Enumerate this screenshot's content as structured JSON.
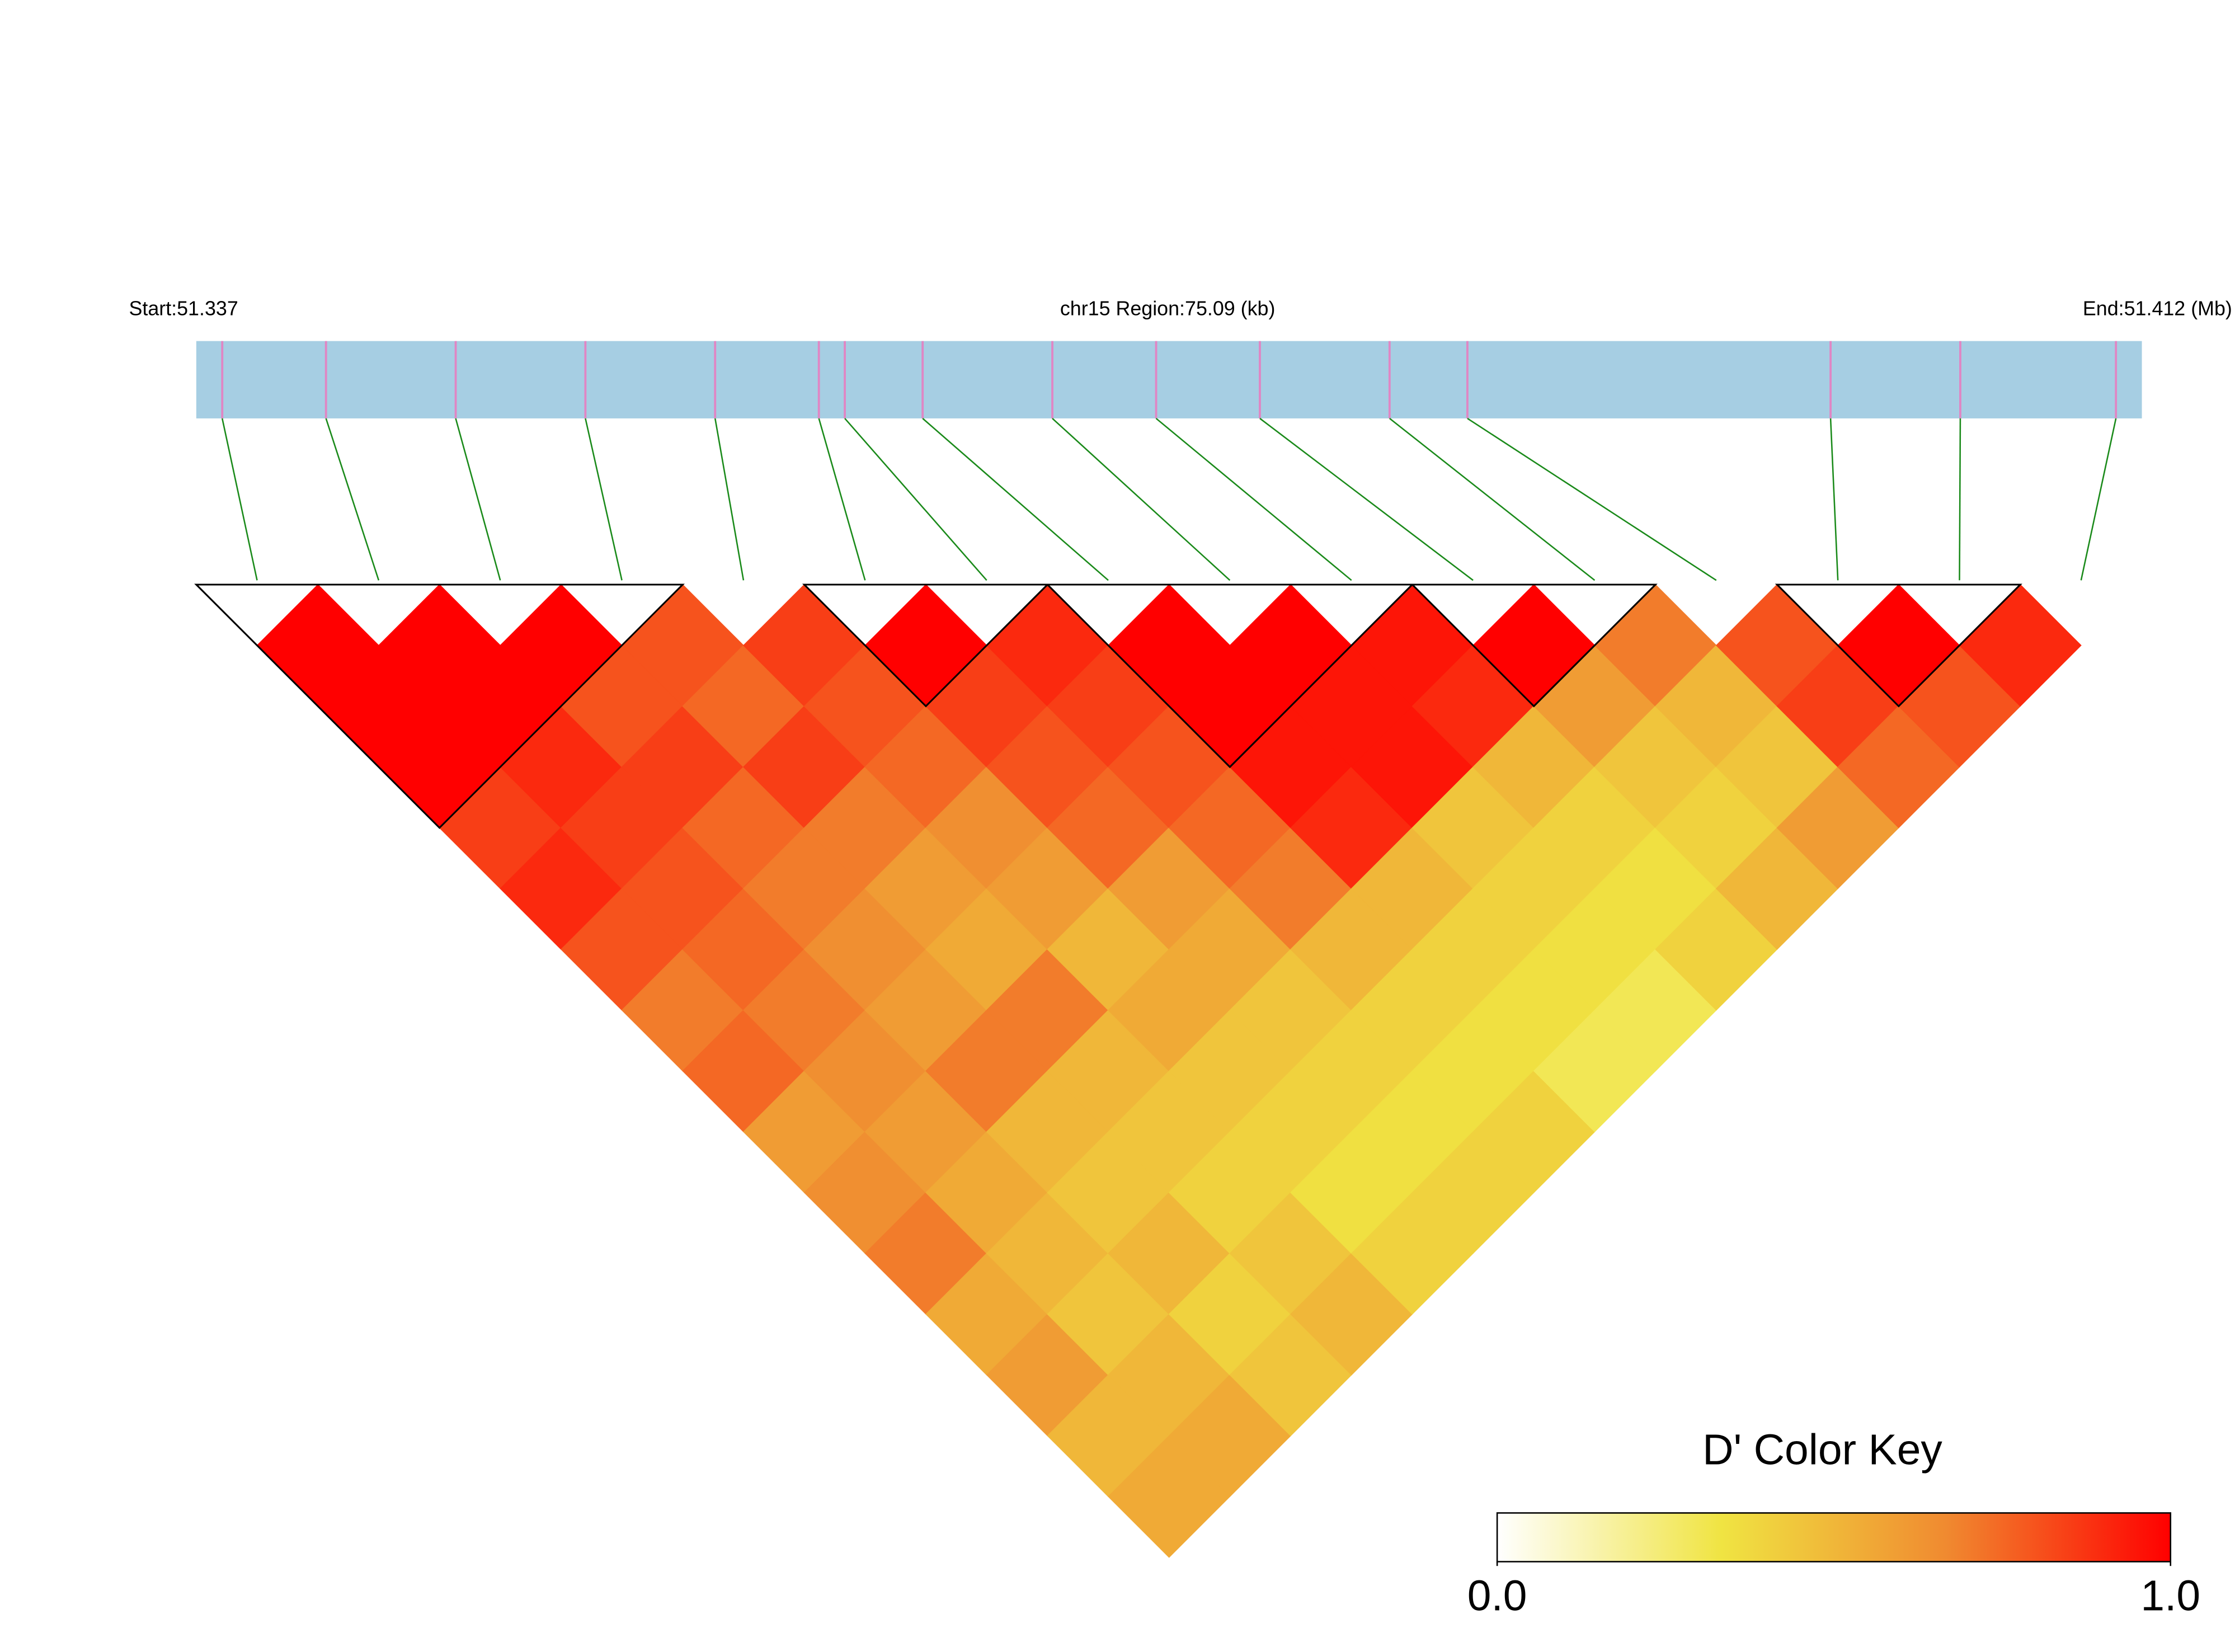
{
  "chart_data": {
    "type": "ld-heatmap",
    "start_label": "Start:51.337",
    "region_label": "chr15 Region:75.09 (kb)",
    "end_label": "End:51.412 (Mb)",
    "xlim": [
      51.337,
      51.412
    ],
    "snp_positions": [
      51.338,
      51.342,
      51.347,
      51.352,
      51.357,
      51.361,
      51.362,
      51.365,
      51.37,
      51.374,
      51.378,
      51.383,
      51.386,
      51.4,
      51.405,
      51.411
    ],
    "band_color": "#a6cee3",
    "snp_color": "#e086c4",
    "link_color": "#1a8a1a",
    "values": [
      [
        1,
        1,
        1,
        0.85,
        0.9,
        0.8,
        0.7,
        0.75,
        0.6,
        0.65,
        0.7,
        0.55,
        0.6,
        0.5,
        0.55
      ],
      [
        1,
        1,
        0.9,
        0.85,
        0.8,
        0.75,
        0.7,
        0.65,
        0.6,
        0.55,
        0.5,
        0.45,
        0.5,
        0.55
      ],
      [
        1,
        0.8,
        0.85,
        0.75,
        0.7,
        0.65,
        0.6,
        0.7,
        0.5,
        0.45,
        0.5,
        0.4,
        0.45
      ],
      [
        0.8,
        0.75,
        0.85,
        0.7,
        0.6,
        0.55,
        0.7,
        0.5,
        0.45,
        0.4,
        0.45,
        0.5
      ],
      [
        0.85,
        0.8,
        0.75,
        0.65,
        0.6,
        0.5,
        0.55,
        0.45,
        0.4,
        0.35,
        0.4
      ],
      [
        1,
        0.85,
        0.8,
        0.75,
        0.6,
        0.55,
        0.45,
        0.4,
        0.35,
        0.4
      ],
      [
        0.9,
        0.85,
        0.8,
        0.75,
        0.7,
        0.5,
        0.4,
        0.35,
        0.4
      ],
      [
        1,
        1,
        0.95,
        0.9,
        0.5,
        0.4,
        0.35,
        0.3
      ],
      [
        1,
        0.95,
        0.95,
        0.45,
        0.4,
        0.35,
        0.3
      ],
      [
        0.95,
        0.9,
        0.5,
        0.4,
        0.35,
        0.4
      ],
      [
        1,
        0.6,
        0.45,
        0.4,
        0.5
      ],
      [
        0.7,
        0.5,
        0.45,
        0.6
      ],
      [
        0.8,
        0.85,
        0.75
      ],
      [
        1,
        0.8
      ],
      [
        0.9
      ]
    ],
    "blocks": [
      {
        "start": 0,
        "end": 3
      },
      {
        "start": 5,
        "end": 6
      },
      {
        "start": 7,
        "end": 9
      },
      {
        "start": 10,
        "end": 11
      },
      {
        "start": 13,
        "end": 14
      }
    ],
    "colorscale": [
      "#ffffff",
      "#f0e442",
      "#f08a30",
      "#ff0000"
    ],
    "colorkey_title": "D' Color Key",
    "clim": [
      0,
      1
    ],
    "colorkey_ticks": [
      {
        "value": 0,
        "label": "0.0"
      },
      {
        "value": 1,
        "label": "1.0"
      }
    ]
  }
}
